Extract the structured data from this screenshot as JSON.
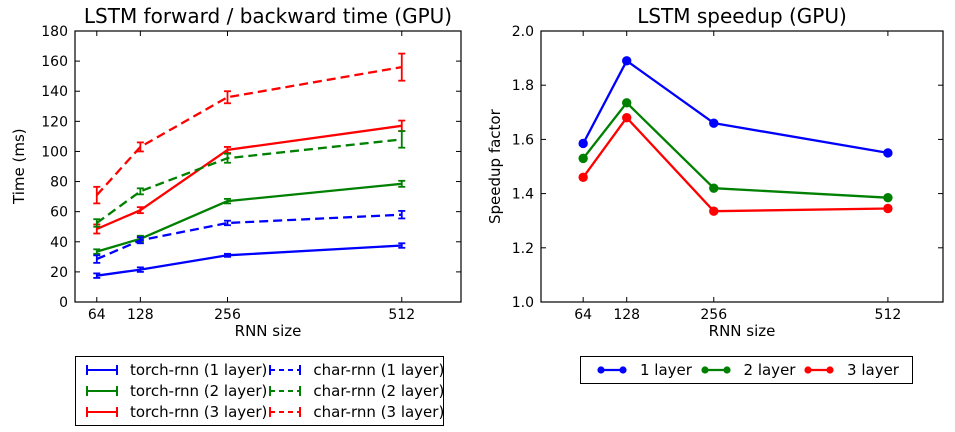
{
  "figure": {
    "background": "#ffffff",
    "frame_color": "#000000",
    "text_color": "#000000"
  },
  "chart_data": [
    {
      "id": "time",
      "type": "line",
      "title": "LSTM forward / backward time (GPU)",
      "xlabel": "RNN size",
      "ylabel": "Time (ms)",
      "grid": false,
      "x": [
        64,
        128,
        256,
        512
      ],
      "xticks": [
        64,
        128,
        256,
        512
      ],
      "xtick_labels": [
        "64",
        "128",
        "256",
        "512"
      ],
      "yticks": [
        0,
        20,
        40,
        60,
        80,
        100,
        120,
        140,
        160,
        180
      ],
      "ytick_labels": [
        "0",
        "20",
        "40",
        "60",
        "80",
        "100",
        "120",
        "140",
        "160",
        "180"
      ],
      "xlim": [
        32,
        599
      ],
      "ylim": [
        0,
        180
      ],
      "legend_position": "below",
      "legend_columns": 2,
      "legend_marker": "errorbar",
      "series": [
        {
          "name": "torch-rnn (1 layer)",
          "color": "#0000ff",
          "style": "solid",
          "values": [
            17.5,
            21.5,
            31,
            37.5
          ],
          "err": [
            1.5,
            1.5,
            1,
            1.5
          ]
        },
        {
          "name": "torch-rnn (2 layer)",
          "color": "#008000",
          "style": "solid",
          "values": [
            33.5,
            42,
            67,
            78.5
          ],
          "err": [
            1.5,
            2,
            1.5,
            2
          ]
        },
        {
          "name": "torch-rnn (3 layer)",
          "color": "#ff0000",
          "style": "solid",
          "values": [
            48.5,
            61,
            101,
            117
          ],
          "err": [
            3,
            2,
            2,
            3.5
          ]
        },
        {
          "name": "char-rnn (1 layer)",
          "color": "#0000ff",
          "style": "dashed",
          "values": [
            28.5,
            41,
            52.5,
            58
          ],
          "err": [
            2.5,
            2,
            1.5,
            2.5
          ]
        },
        {
          "name": "char-rnn (2 layer)",
          "color": "#008000",
          "style": "dashed",
          "values": [
            52.5,
            73.5,
            95.5,
            108
          ],
          "err": [
            2.5,
            2,
            3,
            5.5
          ]
        },
        {
          "name": "char-rnn (3 layer)",
          "color": "#ff0000",
          "style": "dashed",
          "values": [
            71,
            103,
            136,
            156
          ],
          "err": [
            5.5,
            3,
            4,
            9
          ]
        }
      ]
    },
    {
      "id": "speedup",
      "type": "line",
      "title": "LSTM speedup (GPU)",
      "xlabel": "RNN size",
      "ylabel": "Speedup factor",
      "grid": false,
      "x": [
        64,
        128,
        256,
        512
      ],
      "xticks": [
        64,
        128,
        256,
        512
      ],
      "xtick_labels": [
        "64",
        "128",
        "256",
        "512"
      ],
      "yticks": [
        1.0,
        1.2,
        1.4,
        1.6,
        1.8,
        2.0
      ],
      "ytick_labels": [
        "1.0",
        "1.2",
        "1.4",
        "1.6",
        "1.8",
        "2.0"
      ],
      "xlim": [
        2,
        593
      ],
      "ylim": [
        1.0,
        2.0
      ],
      "legend_position": "below",
      "legend_columns": 3,
      "legend_marker": "line-dot",
      "series": [
        {
          "name": "1 layer",
          "color": "#0000ff",
          "style": "solid",
          "marker": "circle",
          "values": [
            1.585,
            1.89,
            1.66,
            1.55
          ]
        },
        {
          "name": "2 layer",
          "color": "#008000",
          "style": "solid",
          "marker": "circle",
          "values": [
            1.53,
            1.735,
            1.42,
            1.385
          ]
        },
        {
          "name": "3 layer",
          "color": "#ff0000",
          "style": "solid",
          "marker": "circle",
          "values": [
            1.46,
            1.68,
            1.335,
            1.345
          ]
        }
      ]
    }
  ]
}
